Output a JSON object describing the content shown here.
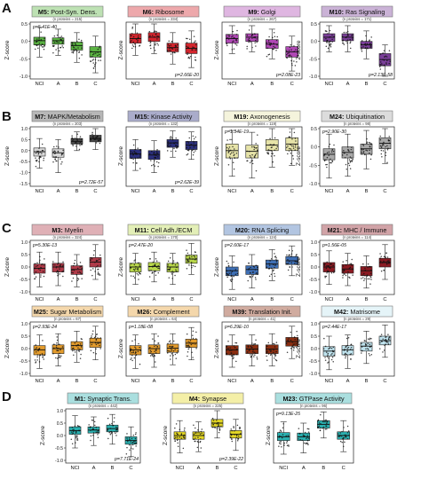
{
  "figure": {
    "panel_letters": [
      "A",
      "B",
      "C",
      "D"
    ],
    "ylabel": "Z-score",
    "x_categories": [
      "NCI",
      "A",
      "B",
      "C"
    ],
    "colors": {
      "M5": "#5ab342",
      "M6": "#d3262e",
      "M9": "#b048b5",
      "M10": "#7a3f98",
      "M7": "#4a4a4a",
      "M15": "#2b2f7c",
      "M19": "#e6e3a8",
      "M24": "#a8a8a8",
      "M3": "#b03a48",
      "M11": "#b9d84a",
      "M20": "#3e6fb5",
      "M21": "#8b1a22",
      "M25": "#e39b2c",
      "M26": "#e39b2c",
      "M39": "#8a2d10",
      "M42": "#bfe3ee",
      "M1": "#2ab0b0",
      "M4": "#e3d624",
      "M23": "#2ab0b0"
    }
  },
  "chart_data": [
    {
      "type": "box",
      "module": "M5",
      "title": "M5: Post-Syn. Dens.",
      "n_proteins": "(n proteins = 215)",
      "pvalue": "p=5.41E-40",
      "categories": [
        "NCI",
        "A",
        "B",
        "C"
      ],
      "ylim": [
        -1.0,
        0.5
      ],
      "yticks": [
        0.5,
        0.0,
        -0.5,
        -1.0
      ],
      "boxes": [
        {
          "q1": -0.1,
          "median": 0.02,
          "q3": 0.12,
          "min": -0.45,
          "max": 0.4
        },
        {
          "q1": -0.08,
          "median": 0.02,
          "q3": 0.1,
          "min": -0.4,
          "max": 0.35
        },
        {
          "q1": -0.25,
          "median": -0.12,
          "q3": -0.02,
          "min": -0.6,
          "max": 0.25
        },
        {
          "q1": -0.45,
          "median": -0.3,
          "q3": -0.15,
          "min": -0.9,
          "max": 0.15
        }
      ]
    },
    {
      "type": "box",
      "module": "M6",
      "title": "M6: Ribosome",
      "n_proteins": "(n proteins = 234)",
      "pvalue": "p=2.66E-20",
      "categories": [
        "NCI",
        "A",
        "B",
        "C"
      ],
      "ylim": [
        -1.0,
        0.5
      ],
      "yticks": [],
      "boxes": [
        {
          "q1": -0.05,
          "median": 0.08,
          "q3": 0.22,
          "min": -0.4,
          "max": 0.5
        },
        {
          "q1": 0.0,
          "median": 0.12,
          "q3": 0.25,
          "min": -0.35,
          "max": 0.5
        },
        {
          "q1": -0.3,
          "median": -0.18,
          "q3": -0.05,
          "min": -0.65,
          "max": 0.25
        },
        {
          "q1": -0.35,
          "median": -0.2,
          "q3": -0.05,
          "min": -0.75,
          "max": 0.3
        }
      ]
    },
    {
      "type": "box",
      "module": "M9",
      "title": "M9: Golgi",
      "n_proteins": "(n proteins = 267)",
      "pvalue": "p=2.08E-23",
      "categories": [
        "NCI",
        "A",
        "B",
        "C"
      ],
      "ylim": [
        -1.0,
        0.5
      ],
      "yticks": [],
      "boxes": [
        {
          "q1": -0.05,
          "median": 0.08,
          "q3": 0.2,
          "min": -0.35,
          "max": 0.45
        },
        {
          "q1": 0.0,
          "median": 0.12,
          "q3": 0.22,
          "min": -0.3,
          "max": 0.45
        },
        {
          "q1": -0.2,
          "median": -0.08,
          "q3": 0.05,
          "min": -0.5,
          "max": 0.35
        },
        {
          "q1": -0.45,
          "median": -0.3,
          "q3": -0.15,
          "min": -0.85,
          "max": 0.15
        }
      ]
    },
    {
      "type": "box",
      "module": "M10",
      "title": "M10: Ras Signaling",
      "n_proteins": "(n proteins = 171)",
      "pvalue": "p=2.13E-58",
      "categories": [
        "NCI",
        "A",
        "B",
        "C"
      ],
      "ylim": [
        -1.0,
        0.5
      ],
      "yticks": [
        0.5,
        0.0,
        -0.5,
        -1.0
      ],
      "boxes": [
        {
          "q1": 0.0,
          "median": 0.12,
          "q3": 0.22,
          "min": -0.3,
          "max": 0.45
        },
        {
          "q1": 0.02,
          "median": 0.12,
          "q3": 0.22,
          "min": -0.3,
          "max": 0.45
        },
        {
          "q1": -0.2,
          "median": -0.1,
          "q3": 0.0,
          "min": -0.5,
          "max": 0.3
        },
        {
          "q1": -0.7,
          "median": -0.52,
          "q3": -0.35,
          "min": -1.0,
          "max": -0.1
        }
      ]
    },
    {
      "type": "box",
      "module": "M7",
      "title": "M7: MAPK/Metabolism",
      "n_proteins": "(n proteins = 203)",
      "pvalue": "p=2.72E-57",
      "categories": [
        "NCI",
        "A",
        "B",
        "C"
      ],
      "ylim": [
        -1.5,
        1.0
      ],
      "yticks": [
        1.0,
        0.5,
        0.0,
        -0.5,
        -1.0,
        -1.5
      ],
      "boxes": [
        {
          "q1": -0.25,
          "median": -0.05,
          "q3": 0.12,
          "min": -0.8,
          "max": 0.55
        },
        {
          "q1": -0.3,
          "median": -0.1,
          "q3": 0.08,
          "min": -1.0,
          "max": 0.5
        },
        {
          "q1": 0.3,
          "median": 0.42,
          "q3": 0.55,
          "min": 0.0,
          "max": 0.85
        },
        {
          "q1": 0.4,
          "median": 0.55,
          "q3": 0.7,
          "min": 0.05,
          "max": 1.0
        }
      ]
    },
    {
      "type": "box",
      "module": "M15",
      "title": "M15: Kinase Activity",
      "n_proteins": "(n proteins = 132)",
      "pvalue": "p=2.62E-39",
      "categories": [
        "NCI",
        "A",
        "B",
        "C"
      ],
      "ylim": [
        -1.5,
        1.0
      ],
      "yticks": [],
      "boxes": [
        {
          "q1": -0.35,
          "median": -0.15,
          "q3": 0.05,
          "min": -0.9,
          "max": 0.5
        },
        {
          "q1": -0.4,
          "median": -0.2,
          "q3": 0.0,
          "min": -1.0,
          "max": 0.45
        },
        {
          "q1": 0.15,
          "median": 0.35,
          "q3": 0.5,
          "min": -0.3,
          "max": 0.9
        },
        {
          "q1": 0.05,
          "median": 0.25,
          "q3": 0.42,
          "min": -0.4,
          "max": 0.85
        }
      ]
    },
    {
      "type": "box",
      "module": "M19",
      "title": "M19: Axonogenesis",
      "n_proteins": "(n proteins = 119)",
      "pvalue": "p=1.34E-19",
      "categories": [
        "NCI",
        "A",
        "B",
        "C"
      ],
      "ylim": [
        -1.0,
        0.5
      ],
      "yticks": [],
      "boxes": [
        {
          "q1": -0.3,
          "median": -0.1,
          "q3": 0.08,
          "min": -0.8,
          "max": 0.45
        },
        {
          "q1": -0.3,
          "median": -0.12,
          "q3": 0.05,
          "min": -0.85,
          "max": 0.4
        },
        {
          "q1": -0.1,
          "median": 0.05,
          "q3": 0.2,
          "min": -0.55,
          "max": 0.5
        },
        {
          "q1": -0.1,
          "median": 0.08,
          "q3": 0.25,
          "min": -0.5,
          "max": 0.5
        }
      ]
    },
    {
      "type": "box",
      "module": "M24",
      "title": "M24: Ubiquitination",
      "n_proteins": "(n proteins = 98)",
      "pvalue": "p=2.90E-30",
      "categories": [
        "NCI",
        "A",
        "B",
        "C"
      ],
      "ylim": [
        -1.0,
        0.5
      ],
      "yticks": [
        0.5,
        0.0,
        -0.5,
        -1.0
      ],
      "boxes": [
        {
          "q1": -0.35,
          "median": -0.2,
          "q3": -0.05,
          "min": -0.85,
          "max": 0.35
        },
        {
          "q1": -0.3,
          "median": -0.15,
          "q3": 0.0,
          "min": -0.8,
          "max": 0.35
        },
        {
          "q1": -0.2,
          "median": -0.05,
          "q3": 0.08,
          "min": -0.6,
          "max": 0.45
        },
        {
          "q1": -0.05,
          "median": 0.1,
          "q3": 0.25,
          "min": -0.45,
          "max": 0.5
        }
      ]
    },
    {
      "type": "box",
      "module": "M3",
      "title": "M3: Myelin",
      "n_proteins": "(n proteins = 324)",
      "pvalue": "p=5.30E-13",
      "categories": [
        "NCI",
        "A",
        "B",
        "C"
      ],
      "ylim": [
        -1.0,
        1.0
      ],
      "yticks": [
        1.0,
        0.5,
        0.0,
        -0.5,
        -1.0
      ],
      "boxes": [
        {
          "q1": -0.25,
          "median": -0.05,
          "q3": 0.12,
          "min": -0.8,
          "max": 0.6
        },
        {
          "q1": -0.2,
          "median": 0.0,
          "q3": 0.15,
          "min": -0.75,
          "max": 0.6
        },
        {
          "q1": -0.3,
          "median": -0.1,
          "q3": 0.05,
          "min": -0.8,
          "max": 0.5
        },
        {
          "q1": 0.0,
          "median": 0.2,
          "q3": 0.38,
          "min": -0.5,
          "max": 0.9
        }
      ]
    },
    {
      "type": "box",
      "module": "M11",
      "title": "M11: Cell Adh./ECM",
      "n_proteins": "(n proteins = 170)",
      "pvalue": "p=2.47E-20",
      "categories": [
        "NCI",
        "A",
        "B",
        "C"
      ],
      "ylim": [
        -1.0,
        1.0
      ],
      "yticks": [],
      "boxes": [
        {
          "q1": -0.2,
          "median": 0.0,
          "q3": 0.15,
          "min": -0.7,
          "max": 0.55
        },
        {
          "q1": -0.15,
          "median": 0.02,
          "q3": 0.18,
          "min": -0.6,
          "max": 0.6
        },
        {
          "q1": -0.2,
          "median": 0.0,
          "q3": 0.15,
          "min": -0.7,
          "max": 0.55
        },
        {
          "q1": 0.15,
          "median": 0.32,
          "q3": 0.48,
          "min": -0.3,
          "max": 0.95
        }
      ]
    },
    {
      "type": "box",
      "module": "M20",
      "title": "M20: RNA Splicing",
      "n_proteins": "(n proteins = 124)",
      "pvalue": "p=2.60E-17",
      "categories": [
        "NCI",
        "A",
        "B",
        "C"
      ],
      "ylim": [
        -1.0,
        1.0
      ],
      "yticks": [],
      "boxes": [
        {
          "q1": -0.35,
          "median": -0.15,
          "q3": 0.0,
          "min": -0.9,
          "max": 0.45
        },
        {
          "q1": -0.3,
          "median": -0.1,
          "q3": 0.05,
          "min": -0.85,
          "max": 0.5
        },
        {
          "q1": -0.05,
          "median": 0.12,
          "q3": 0.28,
          "min": -0.55,
          "max": 0.7
        },
        {
          "q1": 0.1,
          "median": 0.25,
          "q3": 0.42,
          "min": -0.35,
          "max": 0.85
        }
      ]
    },
    {
      "type": "box",
      "module": "M21",
      "title": "M21: MHC / Immune",
      "n_proteins": "(n proteins = 114)",
      "pvalue": "p=1.56E-05",
      "categories": [
        "NCI",
        "A",
        "B",
        "C"
      ],
      "ylim": [
        -1.0,
        1.0
      ],
      "yticks": [
        1.0,
        0.5,
        0.0,
        -0.5,
        -1.0
      ],
      "boxes": [
        {
          "q1": -0.2,
          "median": 0.0,
          "q3": 0.18,
          "min": -0.7,
          "max": 0.65
        },
        {
          "q1": -0.25,
          "median": -0.08,
          "q3": 0.1,
          "min": -0.75,
          "max": 0.55
        },
        {
          "q1": -0.35,
          "median": -0.15,
          "q3": 0.02,
          "min": -0.85,
          "max": 0.45
        },
        {
          "q1": 0.0,
          "median": 0.18,
          "q3": 0.35,
          "min": -0.5,
          "max": 0.9
        }
      ]
    },
    {
      "type": "box",
      "module": "M25",
      "title": "M25: Sugar Metabolism",
      "n_proteins": "(n proteins = 67)",
      "pvalue": "p=2.93E-24",
      "categories": [
        "NCI",
        "A",
        "B",
        "C"
      ],
      "ylim": [
        -1.0,
        1.0
      ],
      "yticks": [
        1.0,
        0.5,
        0.0,
        -0.5,
        -1.0
      ],
      "boxes": [
        {
          "q1": -0.25,
          "median": -0.05,
          "q3": 0.12,
          "min": -0.8,
          "max": 0.55
        },
        {
          "q1": -0.2,
          "median": 0.0,
          "q3": 0.15,
          "min": -0.7,
          "max": 0.6
        },
        {
          "q1": -0.05,
          "median": 0.12,
          "q3": 0.28,
          "min": -0.55,
          "max": 0.7
        },
        {
          "q1": 0.05,
          "median": 0.25,
          "q3": 0.42,
          "min": -0.45,
          "max": 0.9
        }
      ]
    },
    {
      "type": "box",
      "module": "M26",
      "title": "M26: Complement",
      "n_proteins": "(n proteins = 64)",
      "pvalue": "p=1.18E-08",
      "categories": [
        "NCI",
        "A",
        "B",
        "C"
      ],
      "ylim": [
        -1.0,
        1.0
      ],
      "yticks": [],
      "boxes": [
        {
          "q1": -0.25,
          "median": -0.05,
          "q3": 0.12,
          "min": -0.8,
          "max": 0.55
        },
        {
          "q1": -0.2,
          "median": 0.0,
          "q3": 0.15,
          "min": -0.75,
          "max": 0.6
        },
        {
          "q1": -0.15,
          "median": 0.02,
          "q3": 0.18,
          "min": -0.65,
          "max": 0.6
        },
        {
          "q1": 0.05,
          "median": 0.22,
          "q3": 0.38,
          "min": -0.45,
          "max": 0.85
        }
      ]
    },
    {
      "type": "box",
      "module": "M39",
      "title": "M39: Translation Init.",
      "n_proteins": "(n proteins = 41)",
      "pvalue": "p=6.29E-10",
      "categories": [
        "NCI",
        "A",
        "B",
        "C"
      ],
      "ylim": [
        -1.0,
        1.0
      ],
      "yticks": [],
      "boxes": [
        {
          "q1": -0.25,
          "median": -0.05,
          "q3": 0.12,
          "min": -0.75,
          "max": 0.55
        },
        {
          "q1": -0.2,
          "median": -0.02,
          "q3": 0.15,
          "min": -0.7,
          "max": 0.55
        },
        {
          "q1": -0.2,
          "median": -0.02,
          "q3": 0.15,
          "min": -0.7,
          "max": 0.6
        },
        {
          "q1": 0.1,
          "median": 0.28,
          "q3": 0.45,
          "min": -0.4,
          "max": 0.9
        }
      ]
    },
    {
      "type": "box",
      "module": "M42",
      "title": "M42: Matrisome",
      "n_proteins": "(n proteins = 29)",
      "pvalue": "p=2.44E-17",
      "categories": [
        "NCI",
        "A",
        "B",
        "C"
      ],
      "ylim": [
        -1.0,
        1.0
      ],
      "yticks": [
        1.0,
        0.5,
        0.0,
        -0.5,
        -1.0
      ],
      "boxes": [
        {
          "q1": -0.3,
          "median": -0.1,
          "q3": 0.08,
          "min": -0.85,
          "max": 0.5
        },
        {
          "q1": -0.25,
          "median": -0.05,
          "q3": 0.12,
          "min": -0.8,
          "max": 0.55
        },
        {
          "q1": -0.1,
          "median": 0.1,
          "q3": 0.25,
          "min": -0.6,
          "max": 0.7
        },
        {
          "q1": 0.15,
          "median": 0.32,
          "q3": 0.5,
          "min": -0.35,
          "max": 0.95
        }
      ]
    },
    {
      "type": "box",
      "module": "M1",
      "title": "M1: Synaptic Trans.",
      "n_proteins": "(n proteins = 442)",
      "pvalue": "p=7.71E-24",
      "categories": [
        "NCI",
        "A",
        "B",
        "C"
      ],
      "ylim": [
        -1.0,
        1.0
      ],
      "yticks": [
        1.0,
        0.5,
        0.0,
        -0.5,
        -1.0
      ],
      "boxes": [
        {
          "q1": 0.05,
          "median": 0.2,
          "q3": 0.35,
          "min": -0.5,
          "max": 0.8
        },
        {
          "q1": 0.1,
          "median": 0.22,
          "q3": 0.35,
          "min": -0.4,
          "max": 0.75
        },
        {
          "q1": 0.15,
          "median": 0.28,
          "q3": 0.42,
          "min": -0.35,
          "max": 0.85
        },
        {
          "q1": -0.35,
          "median": -0.2,
          "q3": -0.05,
          "min": -0.85,
          "max": 0.35
        }
      ]
    },
    {
      "type": "box",
      "module": "M4",
      "title": "M4: Synapse",
      "n_proteins": "(n proteins = 225)",
      "pvalue": "p=2.39E-22",
      "categories": [
        "NCI",
        "A",
        "B",
        "C"
      ],
      "ylim": [
        -1.0,
        1.0
      ],
      "yticks": [],
      "boxes": [
        {
          "q1": -0.15,
          "median": 0.0,
          "q3": 0.15,
          "min": -0.7,
          "max": 0.6
        },
        {
          "q1": -0.15,
          "median": 0.0,
          "q3": 0.15,
          "min": -0.65,
          "max": 0.55
        },
        {
          "q1": 0.35,
          "median": 0.5,
          "q3": 0.65,
          "min": -0.1,
          "max": 1.0
        },
        {
          "q1": -0.1,
          "median": 0.05,
          "q3": 0.2,
          "min": -0.6,
          "max": 0.65
        }
      ]
    },
    {
      "type": "box",
      "module": "M23",
      "title": "M23: GTPase Activity",
      "n_proteins": "(n proteins = 96)",
      "pvalue": "p=9.13E-25",
      "categories": [
        "NCI",
        "A",
        "B",
        "C"
      ],
      "ylim": [
        -1.0,
        1.0
      ],
      "yticks": [],
      "boxes": [
        {
          "q1": -0.2,
          "median": -0.05,
          "q3": 0.12,
          "min": -0.75,
          "max": 0.55
        },
        {
          "q1": -0.2,
          "median": -0.05,
          "q3": 0.1,
          "min": -0.7,
          "max": 0.5
        },
        {
          "q1": 0.3,
          "median": 0.45,
          "q3": 0.6,
          "min": -0.1,
          "max": 0.95
        },
        {
          "q1": -0.15,
          "median": 0.0,
          "q3": 0.15,
          "min": -0.65,
          "max": 0.6
        }
      ]
    }
  ]
}
